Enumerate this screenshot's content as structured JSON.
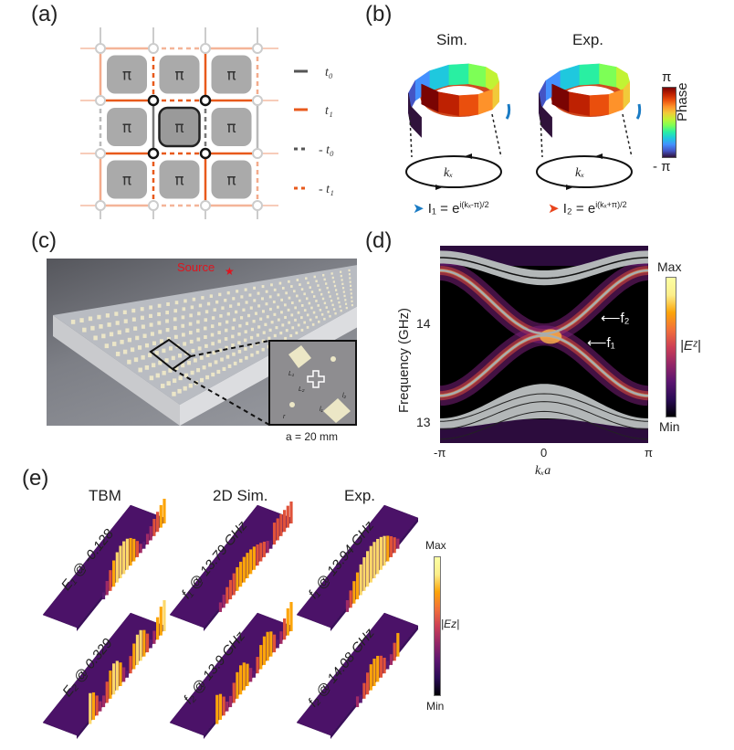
{
  "panels": {
    "a": {
      "label": "(a)",
      "cell_symbol": "π",
      "legend": [
        {
          "label": "t₀",
          "color": "#555555",
          "style": "solid"
        },
        {
          "label": "t₁",
          "color": "#e85a1c",
          "style": "solid"
        },
        {
          "label": "- t₀",
          "color": "#555555",
          "style": "dashed"
        },
        {
          "label": "- t₁",
          "color": "#e85a1c",
          "style": "dashed"
        }
      ]
    },
    "b": {
      "label": "(b)",
      "titles": [
        "Sim.",
        "Exp."
      ],
      "loop_label": "kₓ",
      "colorbar": {
        "top": "π",
        "bottom": "- π",
        "label": "Phase"
      },
      "formula1": {
        "lhs": "I₁ = e",
        "exp": "i(kₓ-π)/2",
        "arrow_color": "#1a7bc4"
      },
      "formula2": {
        "lhs": "I₂ = e",
        "exp": "i(kₓ+π)/2",
        "arrow_color": "#e8441c"
      }
    },
    "c": {
      "label": "(c)",
      "source_label": "Source",
      "inset_labels": [
        "L₁",
        "L₂",
        "l₁",
        "l₂",
        "r"
      ],
      "scale": "a = 20 mm"
    },
    "d": {
      "label": "(d)",
      "annotations": [
        "f₂",
        "f₁"
      ],
      "colorbar": {
        "max": "Max",
        "min": "Min",
        "label": "|Eᶻ|"
      }
    },
    "e": {
      "label": "(e)",
      "columns": [
        "TBM",
        "2D Sim.",
        "Exp."
      ],
      "slabs": [
        [
          "E₁ @ -0.128",
          "E₂ @ 0.329"
        ],
        [
          "f₁ @ 13.79 GHz",
          "f₂ @ 13.9 GHz"
        ],
        [
          "f₁ @ 13.94 GHz",
          "f₂ @ 14.08 GHz"
        ]
      ],
      "colorbar": {
        "max": "Max",
        "min": "Min",
        "label": "|Ez|"
      }
    }
  },
  "chart_data": {
    "type": "heatmap",
    "title": "",
    "xlabel": "kₓa",
    "ylabel": "Frequency (GHz)",
    "xlim": [
      -3.1416,
      3.1416
    ],
    "ylim": [
      12.8,
      14.8
    ],
    "xticks": [
      "-π",
      "0",
      "π"
    ],
    "yticks": [
      "13",
      "14"
    ],
    "colormap": "magma",
    "colorbar": [
      "Min",
      "Max"
    ],
    "edge_bands": [
      {
        "name": "f₂",
        "at_0": 13.91,
        "at_pi": 14.55
      },
      {
        "name": "f₁",
        "at_0": 13.89,
        "at_pi": 13.28
      }
    ],
    "bulk_bands": [
      {
        "at_0": [
          14.4,
          14.55
        ],
        "at_pi": [
          14.62,
          14.75
        ]
      },
      {
        "at_0": [
          13.05,
          13.4
        ],
        "at_pi": [
          12.95,
          13.05
        ]
      }
    ]
  }
}
